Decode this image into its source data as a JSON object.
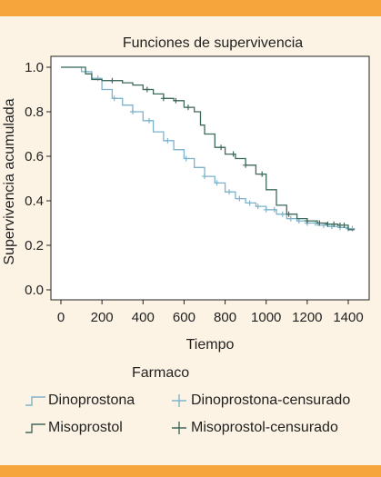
{
  "chart_data": {
    "type": "line",
    "title": "Funciones de supervivencia",
    "xlabel": "Tiempo",
    "ylabel": "Supervivencia acumulada",
    "xlim": [
      0,
      1450
    ],
    "ylim": [
      0,
      1.0
    ],
    "x_ticks": [
      0,
      200,
      400,
      600,
      800,
      1000,
      1200,
      1400
    ],
    "y_ticks": [
      0.0,
      0.2,
      0.4,
      0.6,
      0.8,
      1.0
    ],
    "x_tick_labels": [
      "0",
      "200",
      "400",
      "600",
      "800",
      "1000",
      "1200",
      "1400"
    ],
    "y_tick_labels": [
      "0.0",
      "0.2",
      "0.4",
      "0.6",
      "0.8",
      "1.0"
    ],
    "legend_title": "Farmaco",
    "series": [
      {
        "name": "Dinoprostona",
        "color": "#7fb3cc",
        "censor_label": "Dinoprostona-censurado",
        "points": [
          [
            0,
            1.0
          ],
          [
            60,
            1.0
          ],
          [
            100,
            0.98
          ],
          [
            150,
            0.95
          ],
          [
            200,
            0.9
          ],
          [
            250,
            0.86
          ],
          [
            300,
            0.83
          ],
          [
            350,
            0.8
          ],
          [
            400,
            0.76
          ],
          [
            450,
            0.71
          ],
          [
            500,
            0.67
          ],
          [
            550,
            0.63
          ],
          [
            600,
            0.59
          ],
          [
            650,
            0.55
          ],
          [
            700,
            0.51
          ],
          [
            750,
            0.48
          ],
          [
            800,
            0.44
          ],
          [
            850,
            0.41
          ],
          [
            900,
            0.39
          ],
          [
            950,
            0.375
          ],
          [
            1000,
            0.36
          ],
          [
            1050,
            0.34
          ],
          [
            1100,
            0.32
          ],
          [
            1150,
            0.31
          ],
          [
            1200,
            0.3
          ],
          [
            1250,
            0.29
          ],
          [
            1300,
            0.285
          ],
          [
            1350,
            0.28
          ],
          [
            1400,
            0.275
          ],
          [
            1430,
            0.275
          ]
        ],
        "censored_x": [
          120,
          180,
          260,
          350,
          430,
          520,
          610,
          700,
          760,
          820,
          870,
          920,
          960,
          1000,
          1040,
          1080,
          1120,
          1160,
          1200,
          1240,
          1280,
          1320,
          1360,
          1400,
          1420
        ]
      },
      {
        "name": "Misoprostol",
        "color": "#3e6b5c",
        "censor_label": "Misoprostol-censurado",
        "points": [
          [
            0,
            1.0
          ],
          [
            80,
            1.0
          ],
          [
            120,
            0.97
          ],
          [
            150,
            0.945
          ],
          [
            200,
            0.94
          ],
          [
            300,
            0.93
          ],
          [
            350,
            0.92
          ],
          [
            400,
            0.9
          ],
          [
            450,
            0.88
          ],
          [
            500,
            0.86
          ],
          [
            550,
            0.85
          ],
          [
            600,
            0.82
          ],
          [
            650,
            0.8
          ],
          [
            680,
            0.74
          ],
          [
            700,
            0.7
          ],
          [
            750,
            0.64
          ],
          [
            800,
            0.61
          ],
          [
            850,
            0.59
          ],
          [
            900,
            0.56
          ],
          [
            950,
            0.52
          ],
          [
            1000,
            0.45
          ],
          [
            1050,
            0.38
          ],
          [
            1100,
            0.34
          ],
          [
            1150,
            0.32
          ],
          [
            1200,
            0.31
          ],
          [
            1250,
            0.3
          ],
          [
            1300,
            0.295
          ],
          [
            1350,
            0.29
          ],
          [
            1380,
            0.29
          ],
          [
            1400,
            0.27
          ],
          [
            1430,
            0.27
          ]
        ],
        "censored_x": [
          250,
          420,
          500,
          560,
          620,
          780,
          840,
          900,
          980,
          1110,
          1200,
          1260,
          1300,
          1330,
          1360,
          1380
        ]
      }
    ]
  }
}
